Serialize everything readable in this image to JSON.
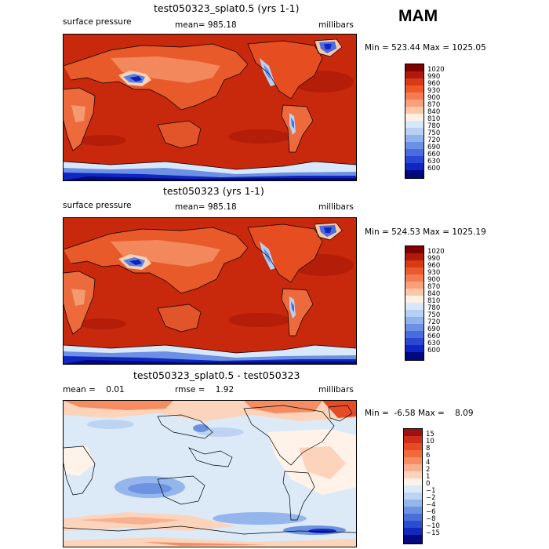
{
  "season": "MAM",
  "panels": [
    {
      "title": "test050323_splat0.5 (yrs 1-1)",
      "left_label": "surface pressure",
      "mid_label": "mean= 985.18",
      "units": "millibars",
      "minmax": "Min = 523.44 Max = 1025.05",
      "colorbar": {
        "levels": [
          "1020",
          "990",
          "960",
          "930",
          "900",
          "870",
          "840",
          "810",
          "780",
          "750",
          "720",
          "690",
          "660",
          "630",
          "600"
        ],
        "colors": [
          "#800000",
          "#b01a0a",
          "#d83a16",
          "#ec5a2c",
          "#f47c52",
          "#f8a07a",
          "#fcc6a8",
          "#fff0e4",
          "#d8e8fa",
          "#b8d0f4",
          "#90b2ee",
          "#6c90e4",
          "#4a6cdc",
          "#2a48d4",
          "#1026c2",
          "#00087e"
        ]
      }
    },
    {
      "title": "test050323 (yrs 1-1)",
      "left_label": "surface pressure",
      "mid_label": "mean= 985.18",
      "units": "millibars",
      "minmax": "Min = 524.53 Max = 1025.19",
      "colorbar": {
        "levels": [
          "1020",
          "990",
          "960",
          "930",
          "900",
          "870",
          "840",
          "810",
          "780",
          "750",
          "720",
          "690",
          "660",
          "630",
          "600"
        ],
        "colors": [
          "#800000",
          "#b01a0a",
          "#d83a16",
          "#ec5a2c",
          "#f47c52",
          "#f8a07a",
          "#fcc6a8",
          "#fff0e4",
          "#d8e8fa",
          "#b8d0f4",
          "#90b2ee",
          "#6c90e4",
          "#4a6cdc",
          "#2a48d4",
          "#1026c2",
          "#00087e"
        ]
      }
    },
    {
      "title": "test050323_splat0.5 - test050323",
      "left_label": "mean =    0.01",
      "mid_label": "rmse =    1.92",
      "units": "millibars",
      "minmax": "Min =  -6.58 Max =    8.09",
      "colorbar": {
        "levels": [
          "15",
          "10",
          "8",
          "6",
          "4",
          "2",
          "1",
          "0",
          "−1",
          "−2",
          "−4",
          "−6",
          "−8",
          "−10",
          "−15"
        ],
        "colors": [
          "#a01010",
          "#cc2e1a",
          "#e64a26",
          "#f06a3c",
          "#f58c62",
          "#f9b08e",
          "#fcd4bc",
          "#fff2e8",
          "#dceaf8",
          "#bcd4f2",
          "#94b6ec",
          "#6e92e2",
          "#4c6edc",
          "#2c4cd2",
          "#1228bc",
          "#050880"
        ]
      }
    }
  ]
}
